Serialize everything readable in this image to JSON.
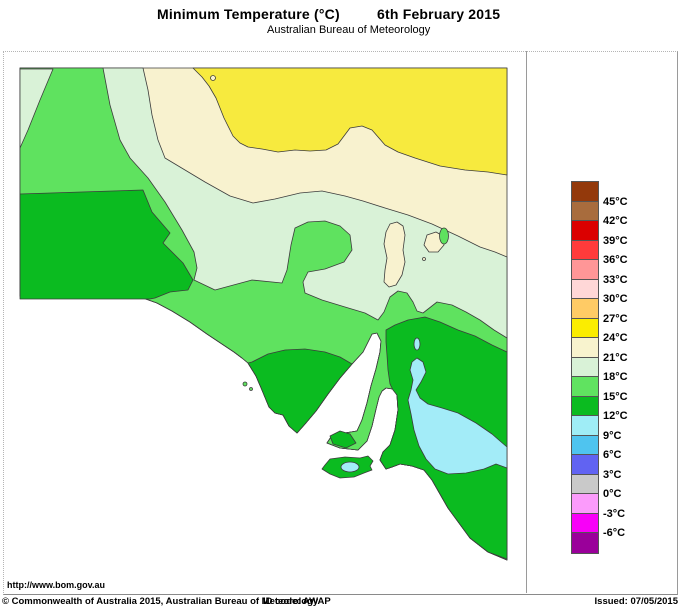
{
  "header": {
    "title": "Minimum Temperature (°C)",
    "date": "6th February 2015",
    "subtitle": "Australian Bureau of Meteorology"
  },
  "map": {
    "watermark_url": "http://www.bom.gov.au",
    "region": "South Australia",
    "sea_color": "#FFFFFF",
    "outline_color": "#3C3C3C",
    "bands": [
      {
        "range": "24-27°C",
        "color": "#F7EA3E"
      },
      {
        "range": "21-24°C",
        "color": "#F8F2CF"
      },
      {
        "range": "18-21°C",
        "color": "#D9F2D7"
      },
      {
        "range": "15-18°C",
        "color": "#5FE25F"
      },
      {
        "range": "12-15°C",
        "color": "#0BBB20"
      },
      {
        "range": "9-12°C",
        "color": "#A3ECF8"
      }
    ]
  },
  "legend": {
    "unit": "°C",
    "colors": [
      "#93390B",
      "#A86C3D",
      "#DB0000",
      "#FF3B3B",
      "#FF9697",
      "#FFD7D7",
      "#FFCB65",
      "#FBED00",
      "#F8F3CE",
      "#D9F2D7",
      "#60E360",
      "#0BBB20",
      "#9FEDF6",
      "#4FC4EF",
      "#6163F2",
      "#C9C9C9",
      "#FB9BFB",
      "#F800F8",
      "#9A009A"
    ],
    "labels": [
      "45°C",
      "42°C",
      "39°C",
      "36°C",
      "33°C",
      "30°C",
      "27°C",
      "24°C",
      "21°C",
      "18°C",
      "15°C",
      "12°C",
      "9°C",
      "6°C",
      "3°C",
      "0°C",
      "-3°C",
      "-6°C"
    ]
  },
  "footer": {
    "copyright": "© Commonwealth of Australia 2015, Australian Bureau of Meteorology",
    "id_code": "ID code: AWAP",
    "issued": "Issued: 07/05/2015"
  }
}
